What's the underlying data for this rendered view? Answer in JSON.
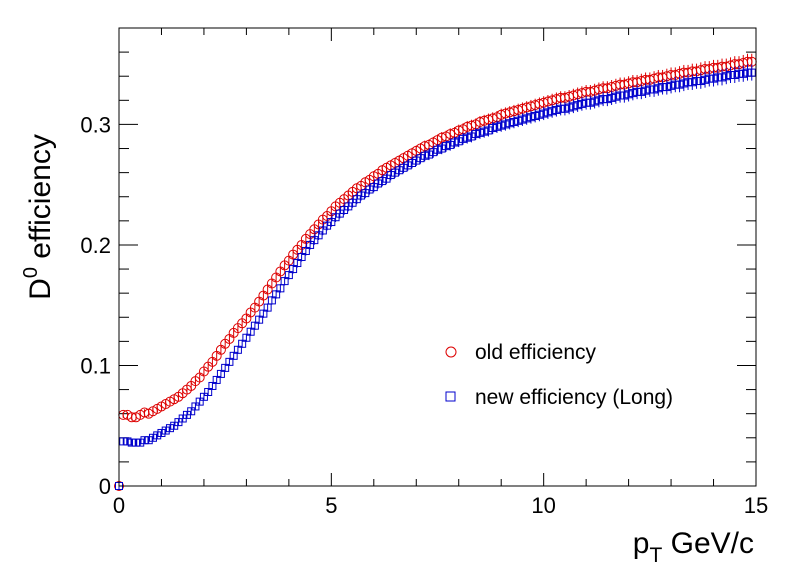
{
  "chart_data": {
    "type": "scatter",
    "xlabel": {
      "main": "p",
      "sub": "T",
      "rest": " GeV/c"
    },
    "ylabel": {
      "main": "D",
      "sup": "0",
      "rest": " efficiency"
    },
    "xlim": [
      0,
      15
    ],
    "ylim": [
      0,
      0.38
    ],
    "x_ticks": [
      0,
      5,
      10,
      15
    ],
    "x_tick_labels": [
      "0",
      "5",
      "10",
      "15"
    ],
    "y_ticks": [
      0,
      0.1,
      0.2,
      0.3
    ],
    "y_tick_labels": [
      "0",
      "0.1",
      "0.2",
      "0.3"
    ],
    "grid": false,
    "legend_position": "lower-right",
    "series": [
      {
        "name": "old efficiency",
        "marker": "open-circle",
        "color": "#dd0000",
        "x": [
          0.0,
          0.1,
          0.2,
          0.3,
          0.4,
          0.5,
          0.6,
          0.7,
          0.8,
          0.9,
          1.0,
          1.1,
          1.2,
          1.3,
          1.4,
          1.5,
          1.6,
          1.7,
          1.8,
          1.9,
          2.0,
          2.1,
          2.2,
          2.3,
          2.4,
          2.5,
          2.6,
          2.7,
          2.8,
          2.9,
          3.0,
          3.1,
          3.2,
          3.3,
          3.4,
          3.5,
          3.6,
          3.7,
          3.8,
          3.9,
          4.0,
          4.1,
          4.2,
          4.3,
          4.4,
          4.5,
          4.6,
          4.7,
          4.8,
          4.9,
          5.0,
          5.1,
          5.2,
          5.3,
          5.4,
          5.5,
          5.6,
          5.7,
          5.8,
          5.9,
          6.0,
          6.1,
          6.2,
          6.3,
          6.4,
          6.5,
          6.6,
          6.7,
          6.8,
          6.9,
          7.0,
          7.1,
          7.2,
          7.3,
          7.4,
          7.5,
          7.6,
          7.7,
          7.8,
          7.9,
          8.0,
          8.1,
          8.2,
          8.3,
          8.4,
          8.5,
          8.6,
          8.7,
          8.8,
          8.9,
          9.0,
          9.1,
          9.2,
          9.3,
          9.4,
          9.5,
          9.6,
          9.7,
          9.8,
          9.9,
          10.0,
          10.1,
          10.2,
          10.3,
          10.4,
          10.5,
          10.6,
          10.7,
          10.8,
          10.9,
          11.0,
          11.1,
          11.2,
          11.3,
          11.4,
          11.5,
          11.6,
          11.7,
          11.8,
          11.9,
          12.0,
          12.1,
          12.2,
          12.3,
          12.4,
          12.5,
          12.6,
          12.7,
          12.8,
          12.9,
          13.0,
          13.1,
          13.2,
          13.3,
          13.4,
          13.5,
          13.6,
          13.7,
          13.8,
          13.9,
          14.0,
          14.1,
          14.2,
          14.3,
          14.4,
          14.5,
          14.6,
          14.7,
          14.8,
          14.9
        ],
        "y": [
          0.0,
          0.059,
          0.059,
          0.057,
          0.057,
          0.059,
          0.061,
          0.06,
          0.062,
          0.064,
          0.066,
          0.068,
          0.07,
          0.072,
          0.074,
          0.077,
          0.08,
          0.083,
          0.087,
          0.09,
          0.095,
          0.099,
          0.103,
          0.108,
          0.113,
          0.118,
          0.122,
          0.127,
          0.131,
          0.135,
          0.139,
          0.144,
          0.148,
          0.153,
          0.158,
          0.163,
          0.168,
          0.173,
          0.178,
          0.183,
          0.187,
          0.192,
          0.196,
          0.2,
          0.205,
          0.209,
          0.213,
          0.217,
          0.221,
          0.224,
          0.228,
          0.232,
          0.235,
          0.238,
          0.241,
          0.244,
          0.247,
          0.249,
          0.252,
          0.254,
          0.257,
          0.259,
          0.262,
          0.264,
          0.266,
          0.268,
          0.27,
          0.272,
          0.274,
          0.276,
          0.278,
          0.28,
          0.282,
          0.283,
          0.285,
          0.287,
          0.289,
          0.29,
          0.292,
          0.293,
          0.295,
          0.296,
          0.298,
          0.299,
          0.3,
          0.302,
          0.303,
          0.304,
          0.305,
          0.306,
          0.308,
          0.309,
          0.31,
          0.311,
          0.312,
          0.313,
          0.314,
          0.315,
          0.316,
          0.317,
          0.318,
          0.319,
          0.32,
          0.321,
          0.322,
          0.322,
          0.323,
          0.324,
          0.325,
          0.326,
          0.327,
          0.327,
          0.328,
          0.329,
          0.33,
          0.33,
          0.331,
          0.332,
          0.333,
          0.333,
          0.334,
          0.335,
          0.335,
          0.336,
          0.337,
          0.337,
          0.338,
          0.339,
          0.339,
          0.34,
          0.341,
          0.341,
          0.342,
          0.343,
          0.343,
          0.344,
          0.344,
          0.345,
          0.346,
          0.346,
          0.347,
          0.347,
          0.348,
          0.348,
          0.349,
          0.35,
          0.35,
          0.351,
          0.352,
          0.352
        ]
      },
      {
        "name": "new efficiency (Long)",
        "marker": "open-square",
        "color": "#0000cc",
        "x": [
          0.0,
          0.1,
          0.2,
          0.3,
          0.4,
          0.5,
          0.6,
          0.7,
          0.8,
          0.9,
          1.0,
          1.1,
          1.2,
          1.3,
          1.4,
          1.5,
          1.6,
          1.7,
          1.8,
          1.9,
          2.0,
          2.1,
          2.2,
          2.3,
          2.4,
          2.5,
          2.6,
          2.7,
          2.8,
          2.9,
          3.0,
          3.1,
          3.2,
          3.3,
          3.4,
          3.5,
          3.6,
          3.7,
          3.8,
          3.9,
          4.0,
          4.1,
          4.2,
          4.3,
          4.4,
          4.5,
          4.6,
          4.7,
          4.8,
          4.9,
          5.0,
          5.1,
          5.2,
          5.3,
          5.4,
          5.5,
          5.6,
          5.7,
          5.8,
          5.9,
          6.0,
          6.1,
          6.2,
          6.3,
          6.4,
          6.5,
          6.6,
          6.7,
          6.8,
          6.9,
          7.0,
          7.1,
          7.2,
          7.3,
          7.4,
          7.5,
          7.6,
          7.7,
          7.8,
          7.9,
          8.0,
          8.1,
          8.2,
          8.3,
          8.4,
          8.5,
          8.6,
          8.7,
          8.8,
          8.9,
          9.0,
          9.1,
          9.2,
          9.3,
          9.4,
          9.5,
          9.6,
          9.7,
          9.8,
          9.9,
          10.0,
          10.1,
          10.2,
          10.3,
          10.4,
          10.5,
          10.6,
          10.7,
          10.8,
          10.9,
          11.0,
          11.1,
          11.2,
          11.3,
          11.4,
          11.5,
          11.6,
          11.7,
          11.8,
          11.9,
          12.0,
          12.1,
          12.2,
          12.3,
          12.4,
          12.5,
          12.6,
          12.7,
          12.8,
          12.9,
          13.0,
          13.1,
          13.2,
          13.3,
          13.4,
          13.5,
          13.6,
          13.7,
          13.8,
          13.9,
          14.0,
          14.1,
          14.2,
          14.3,
          14.4,
          14.5,
          14.6,
          14.7,
          14.8,
          14.9
        ],
        "y": [
          0.0,
          0.037,
          0.037,
          0.036,
          0.036,
          0.036,
          0.038,
          0.038,
          0.04,
          0.042,
          0.044,
          0.046,
          0.048,
          0.05,
          0.053,
          0.056,
          0.059,
          0.062,
          0.066,
          0.07,
          0.074,
          0.078,
          0.083,
          0.088,
          0.093,
          0.098,
          0.103,
          0.108,
          0.113,
          0.118,
          0.123,
          0.128,
          0.133,
          0.138,
          0.143,
          0.148,
          0.154,
          0.159,
          0.164,
          0.17,
          0.175,
          0.18,
          0.185,
          0.19,
          0.195,
          0.2,
          0.204,
          0.208,
          0.212,
          0.216,
          0.219,
          0.223,
          0.226,
          0.229,
          0.232,
          0.235,
          0.238,
          0.241,
          0.243,
          0.246,
          0.248,
          0.251,
          0.253,
          0.255,
          0.258,
          0.26,
          0.262,
          0.264,
          0.266,
          0.268,
          0.27,
          0.272,
          0.274,
          0.275,
          0.277,
          0.279,
          0.28,
          0.282,
          0.283,
          0.285,
          0.286,
          0.288,
          0.289,
          0.29,
          0.292,
          0.293,
          0.294,
          0.295,
          0.297,
          0.298,
          0.299,
          0.3,
          0.301,
          0.302,
          0.303,
          0.304,
          0.305,
          0.306,
          0.307,
          0.308,
          0.309,
          0.31,
          0.311,
          0.312,
          0.313,
          0.313,
          0.314,
          0.315,
          0.316,
          0.317,
          0.318,
          0.318,
          0.319,
          0.32,
          0.321,
          0.321,
          0.322,
          0.323,
          0.324,
          0.324,
          0.325,
          0.326,
          0.327,
          0.327,
          0.328,
          0.329,
          0.329,
          0.33,
          0.331,
          0.331,
          0.332,
          0.333,
          0.333,
          0.334,
          0.335,
          0.335,
          0.336,
          0.336,
          0.337,
          0.338,
          0.338,
          0.339,
          0.339,
          0.34,
          0.341,
          0.341,
          0.342,
          0.342,
          0.343,
          0.343
        ]
      }
    ]
  }
}
